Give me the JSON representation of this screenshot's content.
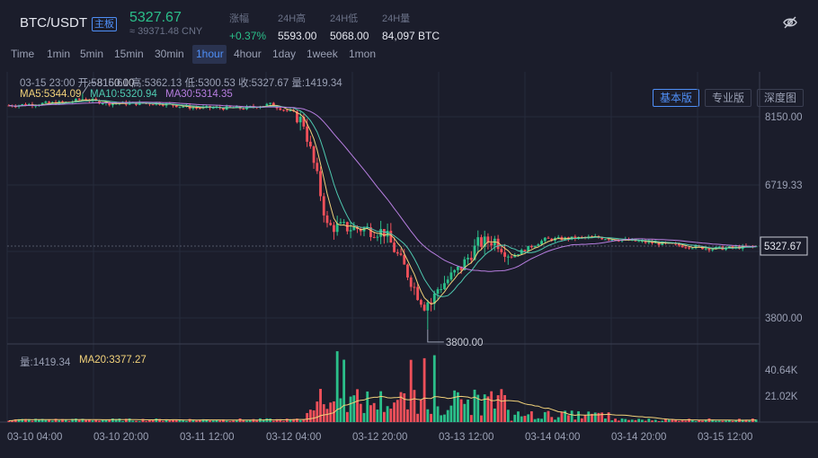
{
  "header": {
    "pair": "BTC/USDT",
    "board_badge": "主板",
    "price": "5327.67",
    "price_cny": "≈ 39371.48 CNY",
    "stats": [
      {
        "label": "涨幅",
        "value": "+0.37%"
      },
      {
        "label": "24H高",
        "value": "5593.00"
      },
      {
        "label": "24H低",
        "value": "5068.00"
      },
      {
        "label": "24H量",
        "value": "84,097 BTC"
      }
    ],
    "visibility_icon": "eye-off-icon"
  },
  "toolbar": {
    "timeframes": [
      "Time",
      "1min",
      "5min",
      "15min",
      "30min",
      "1hour",
      "4hour",
      "1day",
      "1week",
      "1mon"
    ],
    "active_timeframe": "1hour",
    "views": [
      "基本版",
      "专业版",
      "深度图"
    ],
    "active_view": "基本版"
  },
  "legend": {
    "candle_info": "03-15 23:00   开:5316.61  高:5362.13  低:5300.53  收:5327.67  量:1419.34",
    "ma5": "MA5:5344.09",
    "ma10": "MA10:5320.94",
    "ma30": "MA30:5314.35",
    "vol": "量:1419.34",
    "vol_ma20": "MA20:3377.27"
  },
  "colors": {
    "up": "#2bbf8a",
    "down": "#f0505a",
    "ma5": "#f2d27a",
    "ma10": "#4ec9b0",
    "ma30": "#b77ee0",
    "accent": "#4f8ff7"
  },
  "chart_data": {
    "type": "candlestick",
    "price_axis_labels": [
      "8150.00",
      "6719.33",
      "5327.67",
      "3800.00"
    ],
    "volume_axis_labels": [
      "40.64K",
      "21.02K"
    ],
    "x_tick_labels": [
      "03-10 04:00",
      "03-10 20:00",
      "03-11 12:00",
      "03-12 04:00",
      "03-12 20:00",
      "03-13 12:00",
      "03-14 04:00",
      "03-14 20:00",
      "03-15 12:00"
    ],
    "max_marker": "8150.00",
    "min_marker": "3800.00",
    "last_price": "5327.67",
    "price_anchors": [
      [
        0,
        7930
      ],
      [
        18,
        7990
      ],
      [
        22,
        8050
      ],
      [
        30,
        7970
      ],
      [
        45,
        7970
      ],
      [
        55,
        7890
      ],
      [
        70,
        7880
      ],
      [
        78,
        7950
      ],
      [
        85,
        7790
      ],
      [
        88,
        7600
      ],
      [
        92,
        6600
      ],
      [
        95,
        5700
      ],
      [
        105,
        5660
      ],
      [
        112,
        5600
      ],
      [
        118,
        4950
      ],
      [
        122,
        4450
      ],
      [
        125,
        4150
      ],
      [
        128,
        4550
      ],
      [
        135,
        4950
      ],
      [
        140,
        5380
      ],
      [
        145,
        5450
      ],
      [
        150,
        5150
      ],
      [
        160,
        5460
      ],
      [
        175,
        5500
      ],
      [
        195,
        5380
      ],
      [
        210,
        5290
      ],
      [
        223,
        5330
      ]
    ]
  }
}
